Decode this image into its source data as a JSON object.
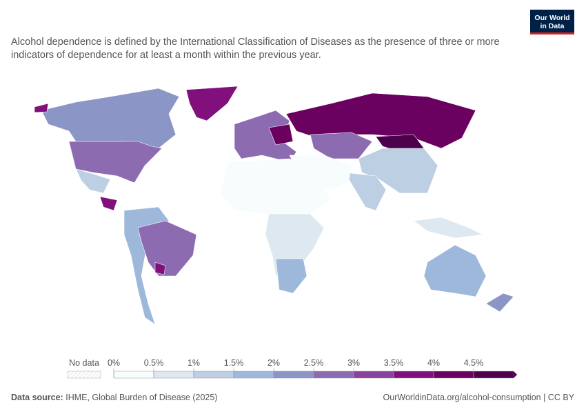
{
  "header": {
    "subtitle": "Alcohol dependence is defined by the International Classification of Diseases as the presence of three or more indicators of dependence for at least a month within the previous year.",
    "logo": [
      "Our World",
      "in Data"
    ]
  },
  "legend": {
    "no_data": "No data",
    "ticks": [
      {
        "value": 0,
        "label": "0%"
      },
      {
        "value": 0.5,
        "label": "0.5%"
      },
      {
        "value": 1,
        "label": "1%"
      },
      {
        "value": 1.5,
        "label": "1.5%"
      },
      {
        "value": 2,
        "label": "2%"
      },
      {
        "value": 2.5,
        "label": "2.5%"
      },
      {
        "value": 3,
        "label": "3%"
      },
      {
        "value": 3.5,
        "label": "3.5%"
      },
      {
        "value": 4,
        "label": "4%"
      },
      {
        "value": 4.5,
        "label": "4.5%"
      }
    ],
    "colors": [
      "#f7fcfd",
      "#dde8f0",
      "#bccfe3",
      "#9db8db",
      "#8c96c6",
      "#8c6bb1",
      "#88419d",
      "#810f7c",
      "#6a0060",
      "#4d004b"
    ]
  },
  "footer": {
    "source_label": "Data source:",
    "source": "IHME, Global Burden of Disease (2025)",
    "url": "OurWorldinData.org/alcohol-consumption | CC BY"
  }
}
